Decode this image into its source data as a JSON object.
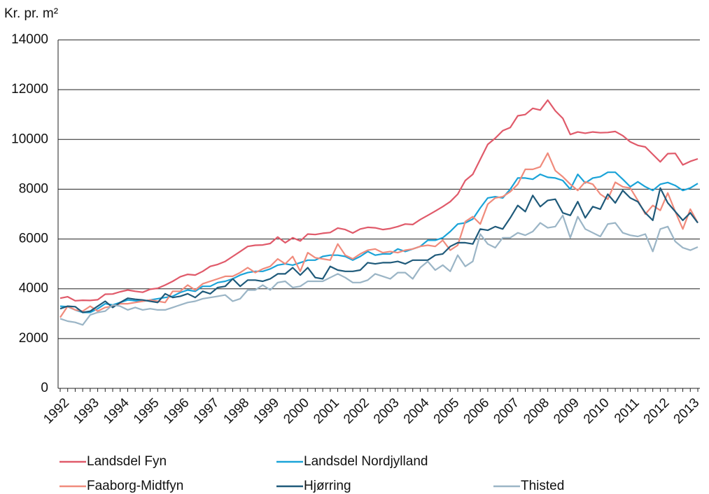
{
  "chart_data": {
    "type": "line",
    "ylabel": "Kr. pr. m²",
    "categories": [
      "1992",
      null,
      null,
      null,
      "1993",
      null,
      null,
      null,
      "1994",
      null,
      null,
      null,
      "1995",
      null,
      null,
      null,
      "1996",
      null,
      null,
      null,
      "1997",
      null,
      null,
      null,
      "1998",
      null,
      null,
      null,
      "1999",
      null,
      null,
      null,
      "2000",
      null,
      null,
      null,
      "2001",
      null,
      null,
      null,
      "2002",
      null,
      null,
      null,
      "2003",
      null,
      null,
      null,
      "2004",
      null,
      null,
      null,
      "2005",
      null,
      null,
      null,
      "2006",
      null,
      null,
      null,
      "2007",
      null,
      null,
      null,
      "2008",
      null,
      null,
      null,
      "2009",
      null,
      null,
      null,
      "2010",
      null,
      null,
      null,
      "2011",
      null,
      null,
      null,
      "2012",
      null,
      null,
      null,
      "2013",
      null
    ],
    "ylim": [
      0,
      14000
    ],
    "yticks": [
      0,
      2000,
      4000,
      6000,
      8000,
      10000,
      12000,
      14000
    ],
    "grid": true,
    "series": [
      {
        "name": "Landsdel Fyn",
        "color": "#e05a6a",
        "values": [
          3620,
          3680,
          3520,
          3540,
          3530,
          3560,
          3780,
          3790,
          3880,
          3950,
          3900,
          3860,
          3980,
          4020,
          4150,
          4300,
          4480,
          4580,
          4550,
          4700,
          4900,
          4980,
          5100,
          5300,
          5500,
          5700,
          5750,
          5760,
          5820,
          6080,
          5850,
          6050,
          5920,
          6200,
          6180,
          6230,
          6260,
          6440,
          6380,
          6240,
          6400,
          6470,
          6450,
          6380,
          6420,
          6500,
          6600,
          6580,
          6780,
          6950,
          7120,
          7300,
          7500,
          7800,
          8350,
          8600,
          9200,
          9800,
          10050,
          10350,
          10480,
          10950,
          11000,
          11250,
          11180,
          11580,
          11150,
          10850,
          10200,
          10300,
          10250,
          10300,
          10270,
          10280,
          10320,
          10150,
          9900,
          9760,
          9700,
          9400,
          9100,
          9430,
          9440,
          8980,
          9120,
          9220
        ]
      },
      {
        "name": "Landsdel Nordjylland",
        "color": "#1aa3d8",
        "values": [
          3300,
          3280,
          3150,
          3050,
          3050,
          3200,
          3400,
          3350,
          3450,
          3550,
          3520,
          3500,
          3550,
          3600,
          3650,
          3700,
          3850,
          3950,
          3900,
          4100,
          4100,
          4250,
          4300,
          4400,
          4550,
          4650,
          4700,
          4700,
          4800,
          4950,
          5000,
          4950,
          5050,
          5150,
          5150,
          5300,
          5350,
          5350,
          5300,
          5150,
          5300,
          5500,
          5350,
          5400,
          5400,
          5600,
          5500,
          5600,
          5700,
          5950,
          5950,
          6050,
          6300,
          6600,
          6650,
          6800,
          7250,
          7650,
          7700,
          7650,
          8000,
          8450,
          8450,
          8400,
          8600,
          8480,
          8450,
          8350,
          8000,
          8600,
          8250,
          8450,
          8500,
          8680,
          8680,
          8400,
          8100,
          8300,
          8100,
          7950,
          8200,
          8270,
          8150,
          7950,
          8050,
          8230
        ]
      },
      {
        "name": "Faaborg-Midtfyn",
        "color": "#f08b7c",
        "values": [
          2850,
          3300,
          3150,
          3100,
          3300,
          3100,
          3250,
          3300,
          3400,
          3400,
          3450,
          3500,
          3550,
          3500,
          3450,
          3900,
          3900,
          4150,
          3950,
          4200,
          4300,
          4400,
          4500,
          4500,
          4650,
          4850,
          4650,
          4800,
          4900,
          5200,
          5000,
          5300,
          4700,
          5450,
          5250,
          5200,
          5150,
          5800,
          5350,
          5200,
          5400,
          5550,
          5600,
          5450,
          5500,
          5450,
          5550,
          5600,
          5700,
          5750,
          5700,
          5950,
          5550,
          5750,
          6700,
          6900,
          6600,
          7400,
          7650,
          7700,
          7900,
          8200,
          8800,
          8800,
          8900,
          9450,
          8750,
          8500,
          8200,
          7950,
          8300,
          8200,
          7800,
          7600,
          8280,
          8100,
          8050,
          7550,
          7000,
          7350,
          7150,
          7850,
          7100,
          6400,
          7200,
          6650
        ]
      },
      {
        "name": "Hjørring",
        "color": "#1f5a7a",
        "values": [
          3200,
          3300,
          3280,
          3050,
          3100,
          3300,
          3500,
          3250,
          3450,
          3620,
          3580,
          3550,
          3500,
          3450,
          3800,
          3650,
          3700,
          3800,
          3650,
          3900,
          3800,
          4050,
          4100,
          4400,
          4100,
          4350,
          4350,
          4300,
          4400,
          4600,
          4600,
          4850,
          4550,
          4850,
          4450,
          4400,
          4900,
          4750,
          4700,
          4700,
          4750,
          5050,
          5000,
          5050,
          5050,
          5100,
          5000,
          5150,
          5150,
          5150,
          5350,
          5400,
          5700,
          5850,
          5850,
          5800,
          6400,
          6350,
          6500,
          6400,
          6850,
          7350,
          7100,
          7750,
          7300,
          7550,
          7600,
          7050,
          6950,
          7500,
          6850,
          7300,
          7200,
          7800,
          7450,
          7950,
          7650,
          7500,
          7050,
          6750,
          8050,
          7450,
          7100,
          6750,
          7050,
          6650
        ]
      },
      {
        "name": "Thisted",
        "color": "#9bb5c6",
        "values": [
          2800,
          2700,
          2650,
          2550,
          2950,
          3050,
          3100,
          3350,
          3300,
          3150,
          3250,
          3150,
          3200,
          3150,
          3150,
          3250,
          3350,
          3450,
          3500,
          3600,
          3650,
          3700,
          3750,
          3500,
          3600,
          3950,
          3950,
          4150,
          3950,
          4250,
          4300,
          4050,
          4100,
          4300,
          4300,
          4300,
          4450,
          4600,
          4450,
          4250,
          4250,
          4350,
          4600,
          4500,
          4400,
          4650,
          4650,
          4400,
          4850,
          5100,
          4750,
          4950,
          4700,
          5350,
          4900,
          5100,
          6200,
          5800,
          5650,
          6050,
          6050,
          6250,
          6150,
          6300,
          6650,
          6450,
          6500,
          6950,
          6050,
          6900,
          6400,
          6250,
          6100,
          6600,
          6650,
          6250,
          6150,
          6100,
          6200,
          5500,
          6400,
          6500,
          5900,
          5650,
          5550,
          5680
        ]
      }
    ]
  }
}
